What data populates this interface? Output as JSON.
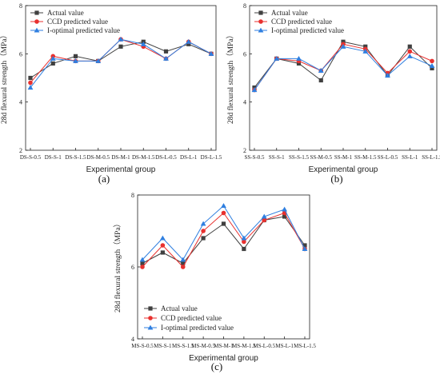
{
  "colors": {
    "actual": "#404040",
    "ccd": "#e8312f",
    "iopt": "#2f7fe0"
  },
  "chart_data": [
    {
      "type": "line",
      "panel_label": "(a)",
      "xlabel": "Experimental group",
      "ylabel": "28d flexural strength（MPa）",
      "ylim": [
        2,
        8
      ],
      "yticks": [
        "2",
        "4",
        "6",
        "8"
      ],
      "legend_position": "top-left",
      "categories": [
        "DS-S-0.5",
        "DS-S-1",
        "DS-S-1.5",
        "DS-M-0.5",
        "DS-M-1",
        "DS-M-1.5",
        "DS-L-0.5",
        "DS-L-1",
        "DS-L-1.5"
      ],
      "series": [
        {
          "name": "Actual value",
          "color": "#404040",
          "marker": "square",
          "values": [
            5.0,
            5.6,
            5.9,
            5.7,
            6.3,
            6.5,
            6.1,
            6.4,
            6.0
          ]
        },
        {
          "name": "CCD predicted value",
          "color": "#e8312f",
          "marker": "circle",
          "values": [
            4.8,
            5.9,
            5.7,
            5.7,
            6.6,
            6.3,
            5.8,
            6.5,
            6.0
          ]
        },
        {
          "name": "I-optimal predicted value",
          "color": "#2f7fe0",
          "marker": "triangle",
          "values": [
            4.6,
            5.8,
            5.7,
            5.7,
            6.6,
            6.4,
            5.8,
            6.5,
            6.0
          ]
        }
      ]
    },
    {
      "type": "line",
      "panel_label": "(b)",
      "xlabel": "Experimental group",
      "ylabel": "28d flexural strength（MPa）",
      "ylim": [
        2,
        8
      ],
      "yticks": [
        "2",
        "4",
        "6",
        "8"
      ],
      "legend_position": "top-left",
      "categories": [
        "SS-S-0.5",
        "SS-S-1",
        "SS-S-1.5",
        "SS-M-0.5",
        "SS-M-1",
        "SS-M-1.5",
        "SS-L-0.5",
        "SS-L-1",
        "SS-L-1.5"
      ],
      "series": [
        {
          "name": "Actual value",
          "color": "#404040",
          "marker": "square",
          "values": [
            4.6,
            5.8,
            5.6,
            4.9,
            6.5,
            6.3,
            5.1,
            6.3,
            5.4
          ]
        },
        {
          "name": "CCD predicted value",
          "color": "#e8312f",
          "marker": "circle",
          "values": [
            4.5,
            5.8,
            5.7,
            5.3,
            6.4,
            6.2,
            5.2,
            6.1,
            5.7
          ]
        },
        {
          "name": "I-optimal predicted value",
          "color": "#2f7fe0",
          "marker": "triangle",
          "values": [
            4.5,
            5.8,
            5.8,
            5.3,
            6.3,
            6.1,
            5.1,
            5.9,
            5.5
          ]
        }
      ]
    },
    {
      "type": "line",
      "panel_label": "(c)",
      "xlabel": "Experimental group",
      "ylabel": "28d flexural strength（MPa）",
      "ylim": [
        4,
        8
      ],
      "yticks": [
        "4",
        "6",
        "8"
      ],
      "legend_position": "bottom-left",
      "categories": [
        "MS-S-0.5",
        "MS-S-1",
        "MS-S-1.5",
        "MS-M-0.5",
        "MS-M-1",
        "MS-M-1.5",
        "MS-L-0.5",
        "MS-L-1",
        "MS-L-1.5"
      ],
      "series": [
        {
          "name": "Actual value",
          "color": "#404040",
          "marker": "square",
          "values": [
            6.1,
            6.4,
            6.1,
            6.8,
            7.2,
            6.5,
            7.3,
            7.4,
            6.6
          ]
        },
        {
          "name": "CCD predicted value",
          "color": "#e8312f",
          "marker": "circle",
          "values": [
            6.0,
            6.6,
            6.0,
            7.0,
            7.5,
            6.7,
            7.3,
            7.5,
            6.5
          ]
        },
        {
          "name": "I-optimal predicted value",
          "color": "#2f7fe0",
          "marker": "triangle",
          "values": [
            6.2,
            6.8,
            6.2,
            7.2,
            7.7,
            6.8,
            7.4,
            7.6,
            6.5
          ]
        }
      ]
    }
  ]
}
